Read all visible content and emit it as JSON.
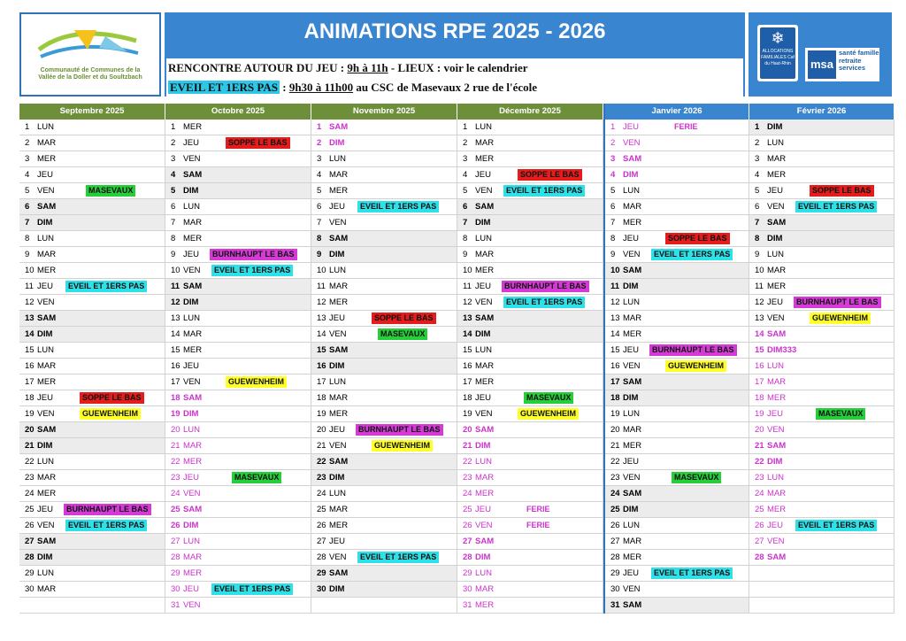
{
  "header": {
    "title": "ANIMATIONS RPE 2025 - 2026",
    "logo_left_text": "Communauté de Communes de la Vallée de la Doller et du Soultzbach",
    "line1": {
      "a": "RENCONTRE AUTOUR DU JEU : ",
      "b": "9h à 11h",
      "c": "  - LIEUX : voir le calendrier"
    },
    "line2": {
      "a": "EVEIL ET 1ERS PAS",
      "b": " : ",
      "c": "9h30 à 11h00",
      "d": " au CSC de Masevaux 2 rue de l'école"
    },
    "caf_text": "ALLOCATIONS FAMILIALES Caf du Haut-Rhin",
    "msa_mark": "msa",
    "msa_text": "santé famille retraite services"
  },
  "colors": {
    "blue": "#3a85cf",
    "green_head": "#6e8f3a",
    "red": "#e51c1c",
    "cyan": "#2ee0e8",
    "green": "#26cf3a",
    "magenta": "#d63ad6",
    "yellow": "#ffff2a",
    "holiday": "#cc33cc"
  },
  "months": [
    {
      "name": "Septembre 2025",
      "head": "green",
      "days": [
        [
          "1",
          "LUN"
        ],
        [
          "2",
          "MAR"
        ],
        [
          "3",
          "MER"
        ],
        [
          "4",
          "JEU"
        ],
        [
          "5",
          "VEN",
          "MASEVAUX",
          "green"
        ],
        [
          "6",
          "SAM"
        ],
        [
          "7",
          "DIM"
        ],
        [
          "8",
          "LUN"
        ],
        [
          "9",
          "MAR"
        ],
        [
          "10",
          "MER"
        ],
        [
          "11",
          "JEU",
          "EVEIL ET 1ERS PAS",
          "cyan"
        ],
        [
          "12",
          "VEN"
        ],
        [
          "13",
          "SAM"
        ],
        [
          "14",
          "DIM"
        ],
        [
          "15",
          "LUN"
        ],
        [
          "16",
          "MAR"
        ],
        [
          "17",
          "MER"
        ],
        [
          "18",
          "JEU",
          "SOPPE LE BAS",
          "red"
        ],
        [
          "19",
          "VEN",
          "GUEWENHEIM",
          "yellow"
        ],
        [
          "20",
          "SAM"
        ],
        [
          "21",
          "DIM"
        ],
        [
          "22",
          "LUN"
        ],
        [
          "23",
          "MAR"
        ],
        [
          "24",
          "MER"
        ],
        [
          "25",
          "JEU",
          "BURNHAUPT LE BAS",
          "magenta"
        ],
        [
          "26",
          "VEN",
          "EVEIL ET 1ERS PAS",
          "cyan"
        ],
        [
          "27",
          "SAM"
        ],
        [
          "28",
          "DIM"
        ],
        [
          "29",
          "LUN"
        ],
        [
          "30",
          "MAR"
        ]
      ]
    },
    {
      "name": "Octobre 2025",
      "head": "green",
      "days": [
        [
          "1",
          "MER"
        ],
        [
          "2",
          "JEU",
          "SOPPE LE BAS",
          "red"
        ],
        [
          "3",
          "VEN"
        ],
        [
          "4",
          "SAM"
        ],
        [
          "5",
          "DIM"
        ],
        [
          "6",
          "LUN"
        ],
        [
          "7",
          "MAR"
        ],
        [
          "8",
          "MER"
        ],
        [
          "9",
          "JEU",
          "BURNHAUPT LE BAS",
          "magenta"
        ],
        [
          "10",
          "VEN",
          "EVEIL ET 1ERS PAS",
          "cyan"
        ],
        [
          "11",
          "SAM"
        ],
        [
          "12",
          "DIM"
        ],
        [
          "13",
          "LUN"
        ],
        [
          "14",
          "MAR"
        ],
        [
          "15",
          "MER"
        ],
        [
          "16",
          "JEU"
        ],
        [
          "17",
          "VEN",
          "GUEWENHEIM",
          "yellow"
        ],
        [
          "18",
          "SAM"
        ],
        [
          "19",
          "DIM"
        ],
        [
          "20",
          "LUN"
        ],
        [
          "21",
          "MAR"
        ],
        [
          "22",
          "MER"
        ],
        [
          "23",
          "JEU",
          "MASEVAUX",
          "green"
        ],
        [
          "24",
          "VEN"
        ],
        [
          "25",
          "SAM"
        ],
        [
          "26",
          "DIM"
        ],
        [
          "27",
          "LUN"
        ],
        [
          "28",
          "MAR"
        ],
        [
          "29",
          "MER"
        ],
        [
          "30",
          "JEU",
          "EVEIL ET 1ERS PAS",
          "cyan"
        ],
        [
          "31",
          "VEN"
        ]
      ]
    },
    {
      "name": "Novembre 2025",
      "head": "green",
      "days": [
        [
          "1",
          "SAM"
        ],
        [
          "2",
          "DIM"
        ],
        [
          "3",
          "LUN"
        ],
        [
          "4",
          "MAR"
        ],
        [
          "5",
          "MER"
        ],
        [
          "6",
          "JEU",
          "EVEIL ET 1ERS PAS",
          "cyan"
        ],
        [
          "7",
          "VEN"
        ],
        [
          "8",
          "SAM"
        ],
        [
          "9",
          "DIM"
        ],
        [
          "10",
          "LUN"
        ],
        [
          "11",
          "MAR"
        ],
        [
          "12",
          "MER"
        ],
        [
          "13",
          "JEU",
          "SOPPE LE BAS",
          "red"
        ],
        [
          "14",
          "VEN",
          "MASEVAUX",
          "green"
        ],
        [
          "15",
          "SAM"
        ],
        [
          "16",
          "DIM"
        ],
        [
          "17",
          "LUN"
        ],
        [
          "18",
          "MAR"
        ],
        [
          "19",
          "MER"
        ],
        [
          "20",
          "JEU",
          "BURNHAUPT LE BAS",
          "magenta"
        ],
        [
          "21",
          "VEN",
          "GUEWENHEIM",
          "yellow"
        ],
        [
          "22",
          "SAM"
        ],
        [
          "23",
          "DIM"
        ],
        [
          "24",
          "LUN"
        ],
        [
          "25",
          "MAR"
        ],
        [
          "26",
          "MER"
        ],
        [
          "27",
          "JEU"
        ],
        [
          "28",
          "VEN",
          "EVEIL ET 1ERS PAS",
          "cyan"
        ],
        [
          "29",
          "SAM"
        ],
        [
          "30",
          "DIM"
        ]
      ]
    },
    {
      "name": "Décembre 2025",
      "head": "green",
      "days": [
        [
          "1",
          "LUN"
        ],
        [
          "2",
          "MAR"
        ],
        [
          "3",
          "MER"
        ],
        [
          "4",
          "JEU",
          "SOPPE LE BAS",
          "red"
        ],
        [
          "5",
          "VEN",
          "EVEIL ET 1ERS PAS",
          "cyan"
        ],
        [
          "6",
          "SAM"
        ],
        [
          "7",
          "DIM"
        ],
        [
          "8",
          "LUN"
        ],
        [
          "9",
          "MAR"
        ],
        [
          "10",
          "MER"
        ],
        [
          "11",
          "JEU",
          "BURNHAUPT LE BAS",
          "magenta"
        ],
        [
          "12",
          "VEN",
          "EVEIL ET 1ERS PAS",
          "cyan"
        ],
        [
          "13",
          "SAM"
        ],
        [
          "14",
          "DIM"
        ],
        [
          "15",
          "LUN"
        ],
        [
          "16",
          "MAR"
        ],
        [
          "17",
          "MER"
        ],
        [
          "18",
          "JEU",
          "MASEVAUX",
          "green"
        ],
        [
          "19",
          "VEN",
          "GUEWENHEIM",
          "yellow"
        ],
        [
          "20",
          "SAM"
        ],
        [
          "21",
          "DIM"
        ],
        [
          "22",
          "LUN"
        ],
        [
          "23",
          "MAR"
        ],
        [
          "24",
          "MER"
        ],
        [
          "25",
          "JEU",
          "FERIE",
          "plain"
        ],
        [
          "26",
          "VEN",
          "FERIE",
          "plain"
        ],
        [
          "27",
          "SAM"
        ],
        [
          "28",
          "DIM"
        ],
        [
          "29",
          "LUN"
        ],
        [
          "30",
          "MAR"
        ],
        [
          "31",
          "MER"
        ]
      ]
    },
    {
      "name": "Janvier 2026",
      "head": "blue",
      "days": [
        [
          "1",
          "JEU",
          "FERIE",
          "plain"
        ],
        [
          "2",
          "VEN"
        ],
        [
          "3",
          "SAM"
        ],
        [
          "4",
          "DIM"
        ],
        [
          "5",
          "LUN"
        ],
        [
          "6",
          "MAR"
        ],
        [
          "7",
          "MER"
        ],
        [
          "8",
          "JEU",
          "SOPPE LE BAS",
          "red"
        ],
        [
          "9",
          "VEN",
          "EVEIL ET 1ERS PAS",
          "cyan"
        ],
        [
          "10",
          "SAM"
        ],
        [
          "11",
          "DIM"
        ],
        [
          "12",
          "LUN"
        ],
        [
          "13",
          "MAR"
        ],
        [
          "14",
          "MER"
        ],
        [
          "15",
          "JEU",
          "BURNHAUPT LE BAS",
          "magenta"
        ],
        [
          "16",
          "VEN",
          "GUEWENHEIM",
          "yellow"
        ],
        [
          "17",
          "SAM"
        ],
        [
          "18",
          "DIM"
        ],
        [
          "19",
          "LUN"
        ],
        [
          "20",
          "MAR"
        ],
        [
          "21",
          "MER"
        ],
        [
          "22",
          "JEU"
        ],
        [
          "23",
          "VEN",
          "MASEVAUX",
          "green"
        ],
        [
          "24",
          "SAM"
        ],
        [
          "25",
          "DIM"
        ],
        [
          "26",
          "LUN"
        ],
        [
          "27",
          "MAR"
        ],
        [
          "28",
          "MER"
        ],
        [
          "29",
          "JEU",
          "EVEIL ET 1ERS PAS",
          "cyan"
        ],
        [
          "30",
          "VEN"
        ],
        [
          "31",
          "SAM"
        ]
      ]
    },
    {
      "name": "Février 2026",
      "head": "blue",
      "days": [
        [
          "1",
          "DIM"
        ],
        [
          "2",
          "LUN"
        ],
        [
          "3",
          "MAR"
        ],
        [
          "4",
          "MER"
        ],
        [
          "5",
          "JEU",
          "SOPPE LE BAS",
          "red"
        ],
        [
          "6",
          "VEN",
          "EVEIL ET 1ERS PAS",
          "cyan"
        ],
        [
          "7",
          "SAM"
        ],
        [
          "8",
          "DIM"
        ],
        [
          "9",
          "LUN"
        ],
        [
          "10",
          "MAR"
        ],
        [
          "11",
          "MER"
        ],
        [
          "12",
          "JEU",
          "BURNHAUPT LE BAS",
          "magenta"
        ],
        [
          "13",
          "VEN",
          "GUEWENHEIM",
          "yellow"
        ],
        [
          "14",
          "SAM"
        ],
        [
          "15",
          "DIM333"
        ],
        [
          "16",
          "LUN"
        ],
        [
          "17",
          "MAR"
        ],
        [
          "18",
          "MER"
        ],
        [
          "19",
          "JEU",
          "MASEVAUX",
          "green"
        ],
        [
          "20",
          "VEN"
        ],
        [
          "21",
          "SAM"
        ],
        [
          "22",
          "DIM"
        ],
        [
          "23",
          "LUN"
        ],
        [
          "24",
          "MAR"
        ],
        [
          "25",
          "MER"
        ],
        [
          "26",
          "JEU",
          "EVEIL ET 1ERS PAS",
          "cyan"
        ],
        [
          "27",
          "VEN"
        ],
        [
          "28",
          "SAM"
        ]
      ]
    }
  ],
  "holidays": {
    "Octobre 2025": [
      18,
      19,
      20,
      21,
      22,
      23,
      24,
      25,
      26,
      27,
      28,
      29,
      30,
      31
    ],
    "Novembre 2025": [
      1,
      2
    ],
    "Décembre 2025": [
      20,
      21,
      22,
      23,
      24,
      25,
      26,
      27,
      28,
      29,
      30,
      31
    ],
    "Janvier 2026": [
      1,
      2,
      3,
      4
    ],
    "Février 2026": [
      14,
      15,
      16,
      17,
      18,
      19,
      20,
      21,
      22,
      23,
      24,
      25,
      26,
      27,
      28
    ]
  }
}
